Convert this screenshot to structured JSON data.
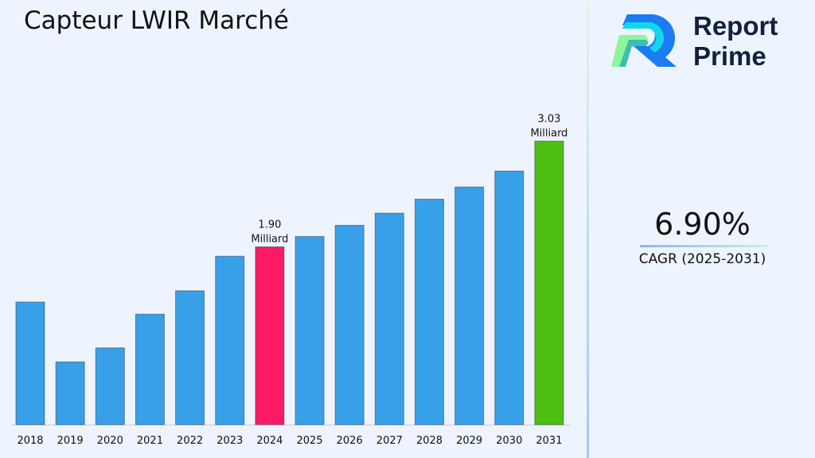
{
  "title": "Capteur LWIR Marché",
  "logo": {
    "line1": "Report",
    "line2": "Prime"
  },
  "cagr": {
    "value": "6.90%",
    "label": "CAGR (2025-2031)"
  },
  "colors": {
    "default_bar": "#38a0e8",
    "highlight_2024": "#fc1a64",
    "highlight_2031": "#4cbf10"
  },
  "chart_data": {
    "type": "bar",
    "title": "Capteur LWIR Marché",
    "xlabel": "",
    "ylabel": "",
    "categories": [
      "2018",
      "2019",
      "2020",
      "2021",
      "2022",
      "2023",
      "2024",
      "2025",
      "2026",
      "2027",
      "2028",
      "2029",
      "2030",
      "2031"
    ],
    "values": [
      1.31,
      0.67,
      0.82,
      1.18,
      1.43,
      1.8,
      1.9,
      2.01,
      2.13,
      2.26,
      2.41,
      2.54,
      2.71,
      3.03
    ],
    "ylim": [
      0,
      3.4
    ],
    "grid": false,
    "data_labels": [
      {
        "category": "2024",
        "value": "1.90",
        "unit": "Milliard"
      },
      {
        "category": "2031",
        "value": "3.03",
        "unit": "Milliard"
      }
    ]
  }
}
